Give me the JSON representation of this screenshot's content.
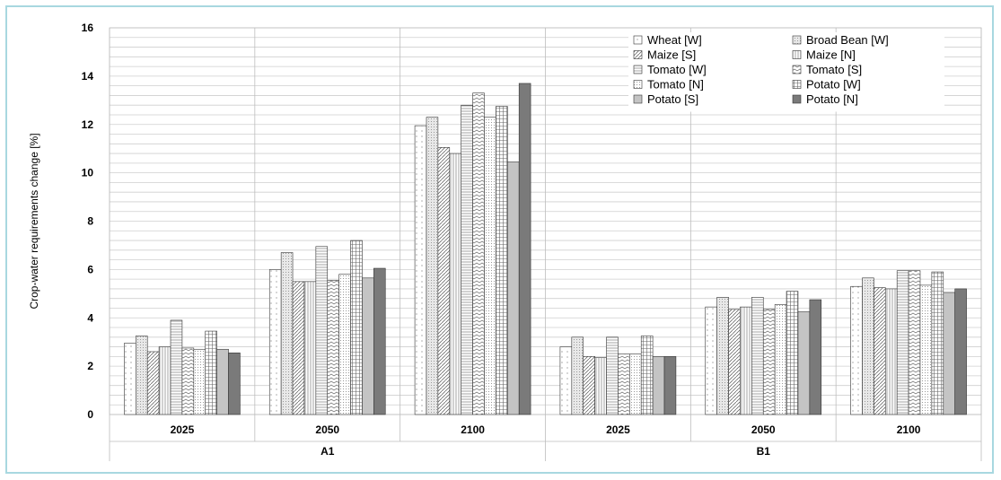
{
  "chart_data": {
    "type": "bar",
    "ylabel": "Crop-water requirements change [%]",
    "ylim": [
      0,
      16
    ],
    "y_ticks": [
      0,
      2,
      4,
      6,
      8,
      10,
      12,
      14,
      16
    ],
    "grid": true,
    "legend_position": "top-right",
    "groups": [
      {
        "label": "A1",
        "categories": [
          "2025",
          "2050",
          "2100"
        ]
      },
      {
        "label": "B1",
        "categories": [
          "2025",
          "2050",
          "2100"
        ]
      }
    ],
    "categories": [
      "2025",
      "2050",
      "2100",
      "2025",
      "2050",
      "2100"
    ],
    "series": [
      {
        "name": "Wheat [W]",
        "pattern": "dots",
        "values": [
          2.95,
          6.0,
          11.95,
          2.8,
          4.45,
          5.3
        ]
      },
      {
        "name": "Broad Bean [W]",
        "pattern": "fine-dots",
        "values": [
          3.25,
          6.7,
          12.3,
          3.2,
          4.85,
          5.65
        ]
      },
      {
        "name": "Maize [S]",
        "pattern": "diagonal",
        "values": [
          2.6,
          5.5,
          11.05,
          2.4,
          4.35,
          5.25
        ]
      },
      {
        "name": "Maize [N]",
        "pattern": "vertical",
        "values": [
          2.8,
          5.5,
          10.8,
          2.35,
          4.45,
          5.2
        ]
      },
      {
        "name": "Tomato [W]",
        "pattern": "horizontal",
        "values": [
          3.9,
          6.95,
          12.8,
          3.2,
          4.85,
          5.95
        ]
      },
      {
        "name": "Tomato [S]",
        "pattern": "zigzag",
        "values": [
          2.75,
          5.55,
          13.3,
          2.5,
          4.35,
          5.95
        ]
      },
      {
        "name": "Tomato [N]",
        "pattern": "dense-dots",
        "values": [
          2.7,
          5.8,
          12.3,
          2.5,
          4.55,
          5.35
        ]
      },
      {
        "name": "Potato [W]",
        "pattern": "grid",
        "values": [
          3.45,
          7.2,
          12.75,
          3.25,
          5.1,
          5.9
        ]
      },
      {
        "name": "Potato [S]",
        "pattern": "light-gray",
        "values": [
          2.7,
          5.65,
          10.45,
          2.4,
          4.25,
          5.05
        ]
      },
      {
        "name": "Potato [N]",
        "pattern": "dark-gray",
        "values": [
          2.55,
          6.05,
          13.7,
          2.4,
          4.75,
          5.2
        ]
      }
    ]
  }
}
